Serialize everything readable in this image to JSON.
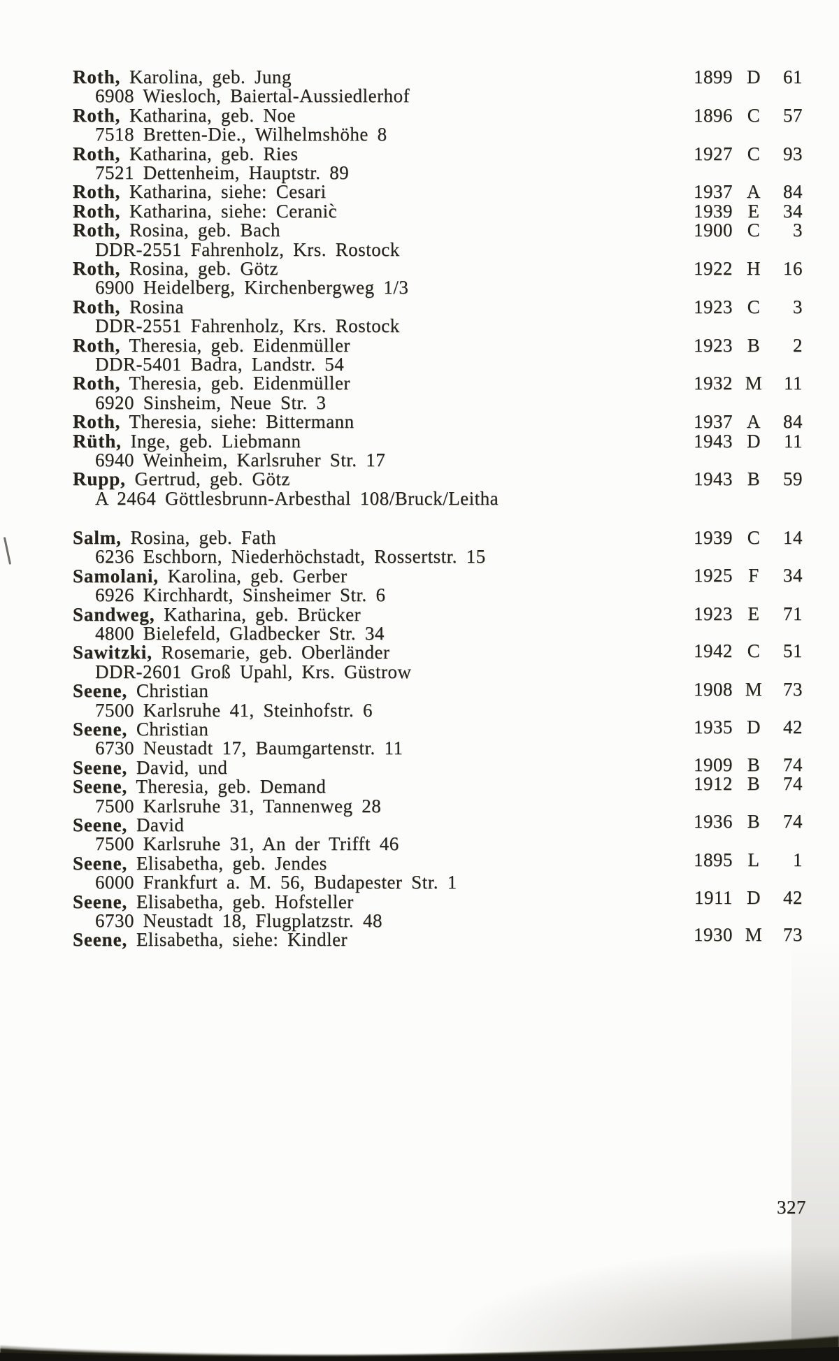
{
  "page": {
    "number": "327"
  },
  "colors": {
    "ink": "#26221c",
    "paper": "#fcfcfa",
    "band": "#232119"
  },
  "groups": [
    {
      "entries": [
        {
          "surname": "Roth,",
          "rest": "Karolina, geb. Jung",
          "year": "1899",
          "letter": "D",
          "num": "61",
          "address": "6908 Wiesloch, Baiertal-Aussiedlerhof"
        },
        {
          "surname": "Roth,",
          "rest": "Katharina, geb. Noe",
          "year": "1896",
          "letter": "C",
          "num": "57",
          "address": "7518 Bretten-Die., Wilhelmshöhe 8"
        },
        {
          "surname": "Roth,",
          "rest": "Katharina, geb. Ries",
          "year": "1927",
          "letter": "C",
          "num": "93",
          "address": "7521 Dettenheim, Hauptstr. 89"
        },
        {
          "surname": "Roth,",
          "rest": "Katharina, siehe: Cesari",
          "year": "1937",
          "letter": "A",
          "num": "84"
        },
        {
          "surname": "Roth,",
          "rest": "Katharina, siehe: Ceranic̀",
          "year": "1939",
          "letter": "E",
          "num": "34"
        },
        {
          "surname": "Roth,",
          "rest": "Rosina, geb. Bach",
          "year": "1900",
          "letter": "C",
          "num": "3",
          "address": "DDR-2551 Fahrenholz, Krs. Rostock"
        },
        {
          "surname": "Roth,",
          "rest": "Rosina, geb. Götz",
          "year": "1922",
          "letter": "H",
          "num": "16",
          "address": "6900 Heidelberg, Kirchenbergweg 1/3"
        },
        {
          "surname": "Roth,",
          "rest": "Rosina",
          "year": "1923",
          "letter": "C",
          "num": "3",
          "address": "DDR-2551 Fahrenholz, Krs. Rostock"
        },
        {
          "surname": "Roth,",
          "rest": "Theresia, geb. Eidenmüller",
          "year": "1923",
          "letter": "B",
          "num": "2",
          "address": "DDR-5401 Badra, Landstr. 54"
        },
        {
          "surname": "Roth,",
          "rest": "Theresia, geb. Eidenmüller",
          "year": "1932",
          "letter": "M",
          "num": "11",
          "address": "6920 Sinsheim, Neue Str. 3"
        },
        {
          "surname": "Roth,",
          "rest": "Theresia, siehe: Bittermann",
          "year": "1937",
          "letter": "A",
          "num": "84"
        },
        {
          "surname": "Rüth,",
          "rest": "Inge, geb. Liebmann",
          "year": "1943",
          "letter": "D",
          "num": "11",
          "address": "6940 Weinheim, Karlsruher Str. 17"
        },
        {
          "surname": "Rupp,",
          "rest": "Gertrud, geb. Götz",
          "year": "1943",
          "letter": "B",
          "num": "59",
          "address": "A 2464 Göttlesbrunn-Arbesthal 108/Bruck/Leitha"
        }
      ]
    },
    {
      "entries": [
        {
          "surname": "Salm,",
          "rest": "Rosina, geb. Fath",
          "year": "1939",
          "letter": "C",
          "num": "14",
          "address": "6236 Eschborn, Niederhöchstadt, Rossertstr. 15"
        },
        {
          "surname": "Samolani,",
          "rest": "Karolina, geb. Gerber",
          "year": "1925",
          "letter": "F",
          "num": "34",
          "address": "6926 Kirchhardt, Sinsheimer Str. 6"
        },
        {
          "surname": "Sandweg,",
          "rest": "Katharina, geb. Brücker",
          "year": "1923",
          "letter": "E",
          "num": "71",
          "address": "4800 Bielefeld, Gladbecker Str. 34"
        },
        {
          "surname": "Sawitzki,",
          "rest": "Rosemarie, geb. Oberländer",
          "year": "1942",
          "letter": "C",
          "num": "51",
          "address": "DDR-2601 Groß Upahl, Krs. Güstrow"
        },
        {
          "surname": "Seene,",
          "rest": "Christian",
          "year": "1908",
          "letter": "M",
          "num": "73",
          "address": "7500 Karlsruhe 41, Steinhofstr. 6"
        },
        {
          "surname": "Seene,",
          "rest": "Christian",
          "year": "1935",
          "letter": "D",
          "num": "42",
          "address": "6730 Neustadt 17, Baumgartenstr. 11"
        },
        {
          "surname": "Seene,",
          "rest": "David, und",
          "year": "1909",
          "letter": "B",
          "num": "74"
        },
        {
          "surname": "Seene,",
          "rest": "Theresia, geb. Demand",
          "year": "1912",
          "letter": "B",
          "num": "74",
          "address": "7500 Karlsruhe 31, Tannenweg 28"
        },
        {
          "surname": "Seene,",
          "rest": "David",
          "year": "1936",
          "letter": "B",
          "num": "74",
          "address": "7500 Karlsruhe 31, An der Trifft 46"
        },
        {
          "surname": "Seene,",
          "rest": "Elisabetha, geb. Jendes",
          "year": "1895",
          "letter": "L",
          "num": "1",
          "address": "6000 Frankfurt a. M. 56, Budapester Str. 1"
        },
        {
          "surname": "Seene,",
          "rest": "Elisabetha, geb. Hofsteller",
          "year": "1911",
          "letter": "D",
          "num": "42",
          "address": "6730 Neustadt 18, Flugplatzstr. 48"
        },
        {
          "surname": "Seene,",
          "rest": "Elisabetha, siehe: Kindler",
          "year": "1930",
          "letter": "M",
          "num": "73"
        }
      ]
    }
  ]
}
